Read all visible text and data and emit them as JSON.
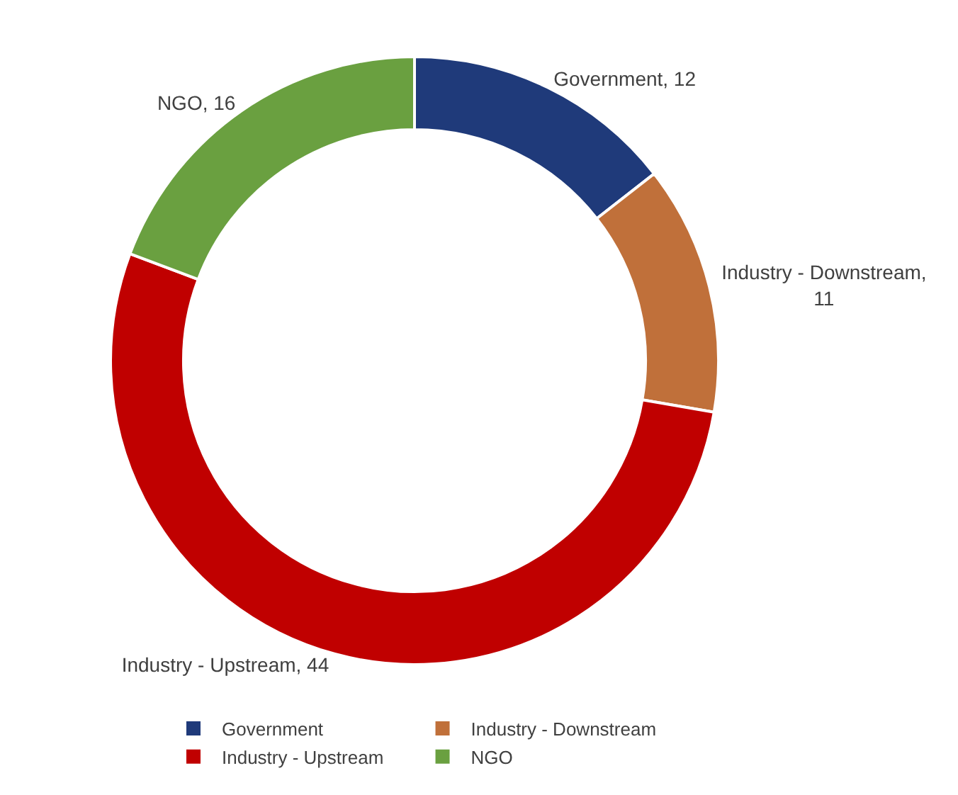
{
  "chart_data": {
    "type": "donut",
    "categories": [
      "Government",
      "Industry - Downstream",
      "Industry - Upstream",
      "NGO"
    ],
    "values": [
      12,
      11,
      44,
      16
    ],
    "value_labels": [
      "Government, 12",
      "Industry - Downstream, 11",
      "Industry - Upstream, 44",
      "NGO, 16"
    ],
    "colors": [
      "#1f3a7a",
      "#c0703a",
      "#c00000",
      "#6aa040"
    ],
    "legend": "bottom"
  }
}
